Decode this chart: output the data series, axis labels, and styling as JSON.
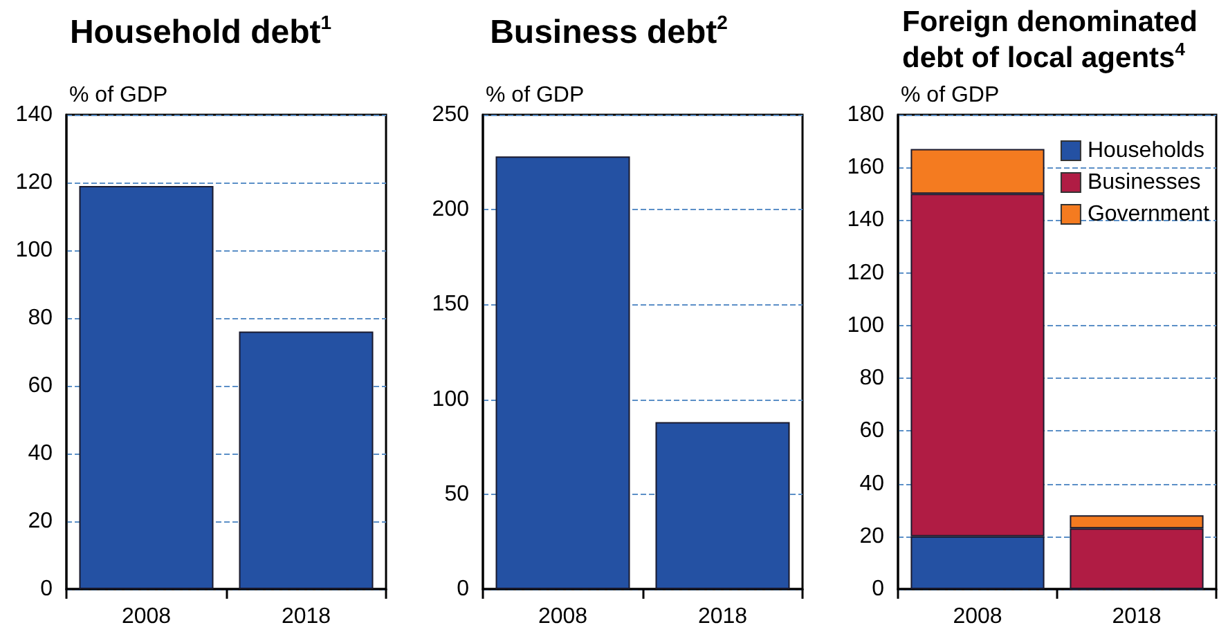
{
  "chart_data": [
    {
      "type": "bar",
      "title": "Household debt$^{1}$",
      "ylabel": "% of GDP",
      "categories": [
        "2008",
        "2018"
      ],
      "values": [
        119,
        76
      ],
      "color": "#2451a3",
      "ylim": [
        0,
        140
      ],
      "yticks": [
        0,
        20,
        40,
        60,
        80,
        100,
        120,
        140
      ],
      "grid": "y",
      "legend": false
    },
    {
      "type": "bar",
      "title": "Business debt$^{2}$",
      "ylabel": "% of GDP",
      "categories": [
        "2008",
        "2018"
      ],
      "values": [
        228,
        88
      ],
      "color": "#2451a3",
      "ylim": [
        0,
        250
      ],
      "yticks": [
        0,
        50,
        100,
        150,
        200,
        250
      ],
      "grid": "y",
      "legend": false
    },
    {
      "type": "bar",
      "title": "Foreign denominated\ndebt of local agents$^{4}$",
      "ylabel": "% of GDP",
      "categories": [
        "2008",
        "2018"
      ],
      "stacked": true,
      "series": [
        {
          "name": "Households",
          "color": "#2451a3",
          "values": [
            20,
            0
          ]
        },
        {
          "name": "Businesses",
          "color": "#b01c44",
          "values": [
            130,
            23
          ]
        },
        {
          "name": "Government",
          "color": "#f47b20",
          "values": [
            17,
            5
          ]
        }
      ],
      "ylim": [
        0,
        180
      ],
      "yticks": [
        0,
        20,
        40,
        60,
        80,
        100,
        120,
        140,
        160,
        180
      ],
      "grid": "y",
      "legend": "top right"
    }
  ]
}
